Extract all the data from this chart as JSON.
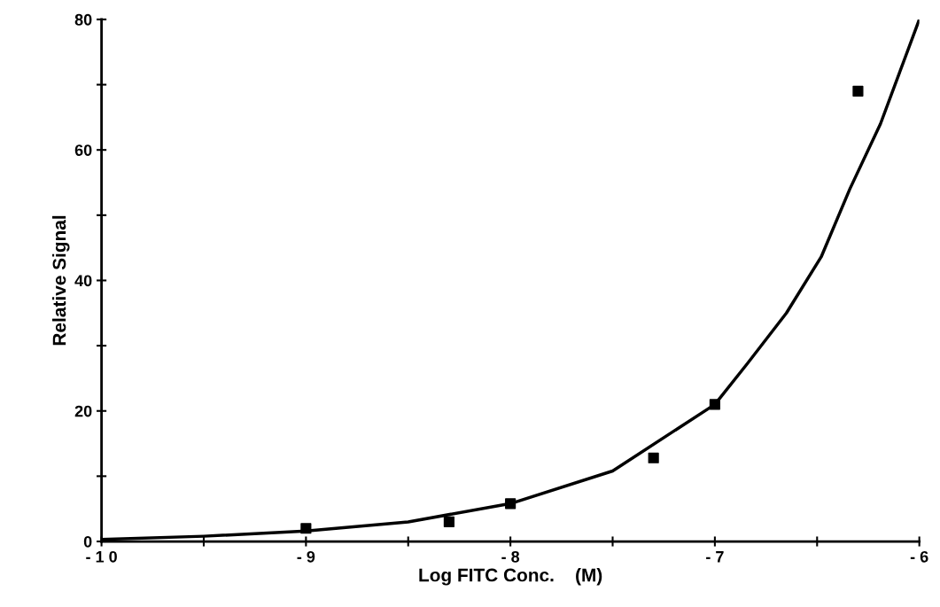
{
  "chart_data": {
    "type": "scatter",
    "xlabel": "Log FITC Conc.    (M)",
    "ylabel": "Relative Signal",
    "series": [
      {
        "color": "#000000",
        "marker": "square",
        "x": [
          -9,
          -8.3,
          -8,
          -7.3,
          -7,
          -6.3
        ],
        "values": [
          2,
          3,
          5.8,
          12.8,
          21,
          69
        ]
      },
      {
        "type": "line",
        "color": "#000000",
        "marker": "none",
        "line_style": "solid",
        "x": [
          -10,
          -9.5,
          -9,
          -8.5,
          -8,
          -7.5,
          -7,
          -6.84,
          -6.65,
          -6.48,
          -6.34,
          -6.19,
          -6.0
        ],
        "values": [
          0.3,
          0.8,
          1.6,
          3.0,
          5.8,
          10.8,
          21,
          27.3,
          35,
          43.6,
          54,
          64,
          80
        ]
      }
    ],
    "xlim": [
      -10,
      -6
    ],
    "ylim": [
      0,
      80
    ],
    "xticks": [
      {
        "value": -10,
        "label": "- 1 0"
      },
      {
        "value": -9.5,
        "label": null
      },
      {
        "value": -9,
        "label": "- 9"
      },
      {
        "value": -8.5,
        "label": null
      },
      {
        "value": -8,
        "label": "- 8"
      },
      {
        "value": -7.5,
        "label": null
      },
      {
        "value": -7,
        "label": "- 7"
      },
      {
        "value": -6.5,
        "label": null
      },
      {
        "value": -6,
        "label": "- 6"
      }
    ],
    "yticks": [
      0,
      {
        "value": 10,
        "label": null
      },
      20,
      {
        "value": 30,
        "label": null
      },
      40,
      {
        "value": 50,
        "label": null
      },
      60,
      {
        "value": 70,
        "label": null
      },
      80
    ],
    "grid": false,
    "legend": false
  }
}
